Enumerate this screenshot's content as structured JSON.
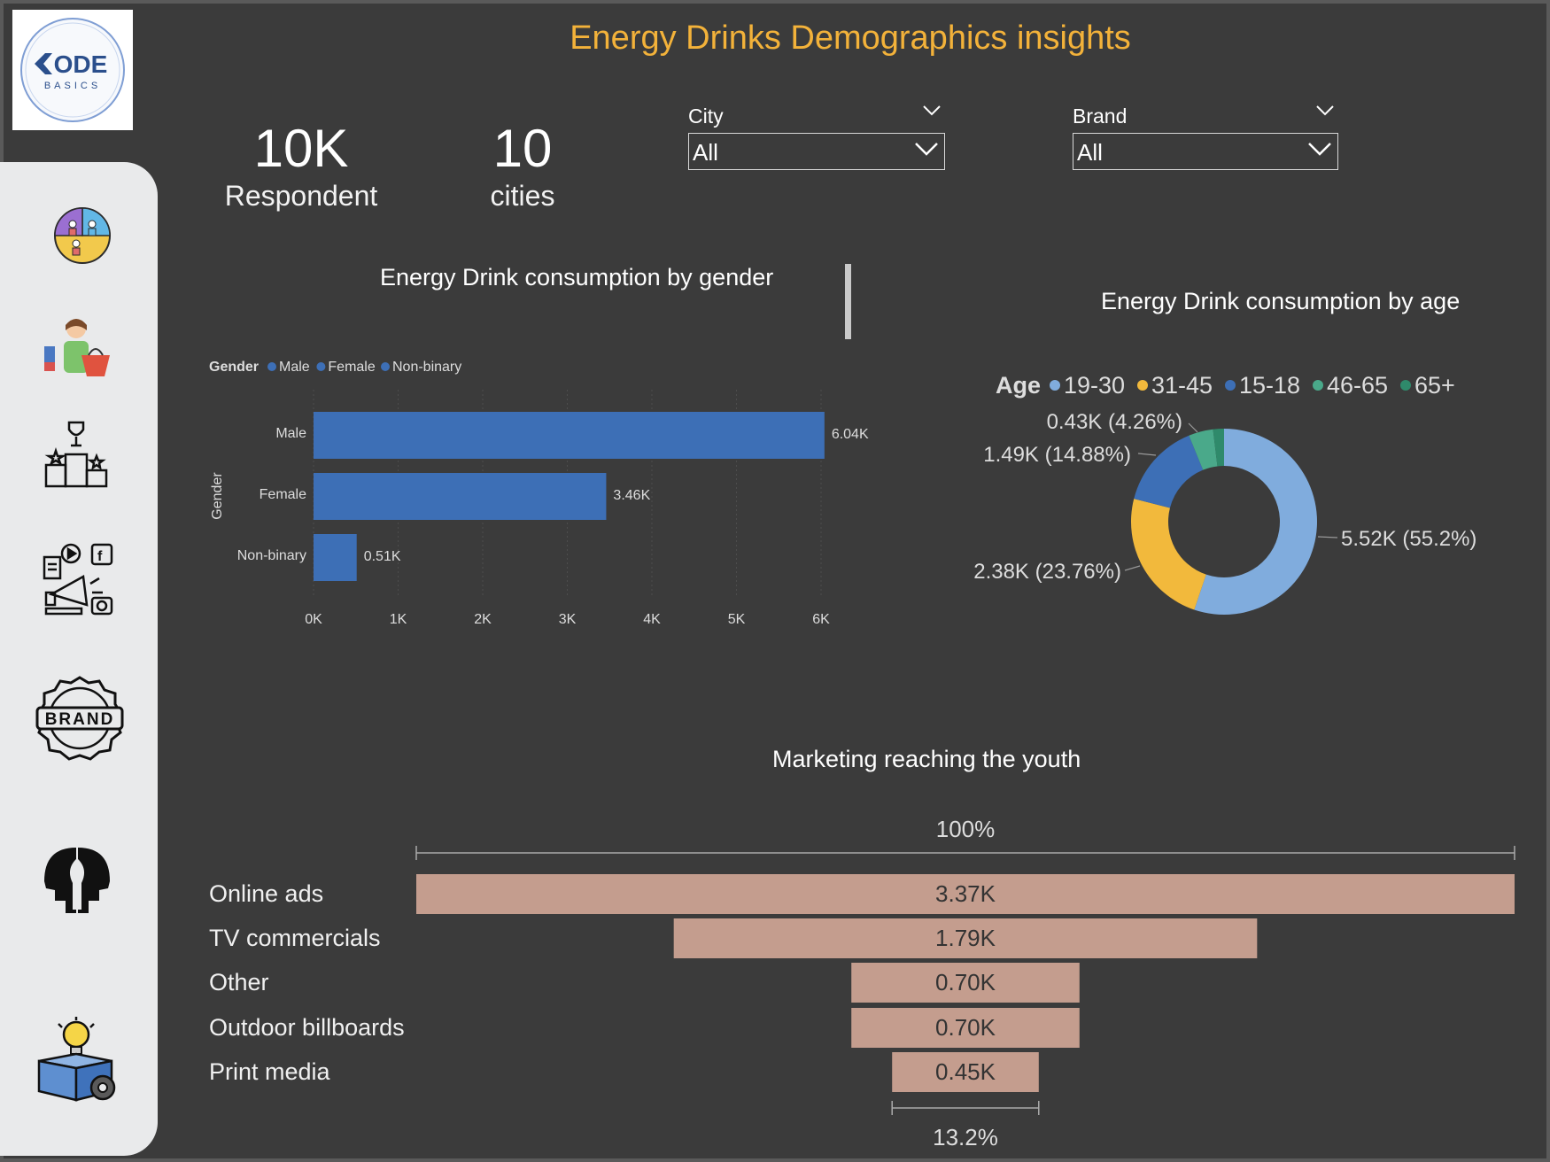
{
  "title": "Energy Drinks Demographics insights",
  "logo": {
    "text_top": "ODE",
    "text_bottom": "BASICS"
  },
  "kpis": [
    {
      "value": "10K",
      "label": "Respondent"
    },
    {
      "value": "10",
      "label": "cities"
    }
  ],
  "slicers": [
    {
      "label": "City",
      "value": "All"
    },
    {
      "label": "Brand",
      "value": "All"
    }
  ],
  "sidebar": {
    "items": [
      {
        "icon": "demographics-icon"
      },
      {
        "icon": "shopper-icon"
      },
      {
        "icon": "podium-icon"
      },
      {
        "icon": "marketing-icon"
      },
      {
        "icon": "brand-badge-icon"
      },
      {
        "icon": "mind-icon"
      },
      {
        "icon": "idea-box-icon"
      }
    ]
  },
  "colors": {
    "accent": "#f3b23a",
    "bar": "#3d6fb6",
    "funnel": "#c49d8e",
    "background": "#3b3b3b",
    "age": [
      "#80acdd",
      "#f2b93c",
      "#3d6fb6",
      "#4aa98a",
      "#2f8a6b"
    ]
  },
  "chart_data": [
    {
      "type": "bar",
      "title": "Energy Drink consumption by gender",
      "legend_title": "Gender",
      "legend_placement": "top-left",
      "ylabel": "Gender",
      "categories": [
        "Male",
        "Female",
        "Non-binary"
      ],
      "values": [
        6.04,
        3.46,
        0.51
      ],
      "data_labels": [
        "6.04K",
        "3.46K",
        "0.51K"
      ],
      "xlim": [
        0,
        6
      ],
      "xticks": [
        "0K",
        "1K",
        "2K",
        "3K",
        "4K",
        "5K",
        "6K"
      ],
      "grid": true
    },
    {
      "type": "pie",
      "subtype": "donut",
      "title": "Energy Drink consumption by age",
      "legend_title": "Age",
      "legend_placement": "top",
      "categories": [
        "19-30",
        "31-45",
        "15-18",
        "46-65",
        "65+"
      ],
      "values": [
        55.2,
        23.76,
        14.88,
        4.26,
        1.9
      ],
      "data_labels": [
        "5.52K (55.2%)",
        "2.38K (23.76%)",
        "1.49K (14.88%)",
        "0.43K (4.26%)",
        ""
      ]
    },
    {
      "type": "bar",
      "subtype": "funnel",
      "title": "Marketing reaching the youth",
      "categories": [
        "Online ads",
        "TV commercials",
        "Other",
        "Outdoor billboards",
        "Print media"
      ],
      "values": [
        3.37,
        1.79,
        0.7,
        0.7,
        0.45
      ],
      "data_labels": [
        "3.37K",
        "1.79K",
        "0.70K",
        "0.70K",
        "0.45K"
      ],
      "top_label": "100%",
      "bottom_label": "13.2%"
    }
  ]
}
